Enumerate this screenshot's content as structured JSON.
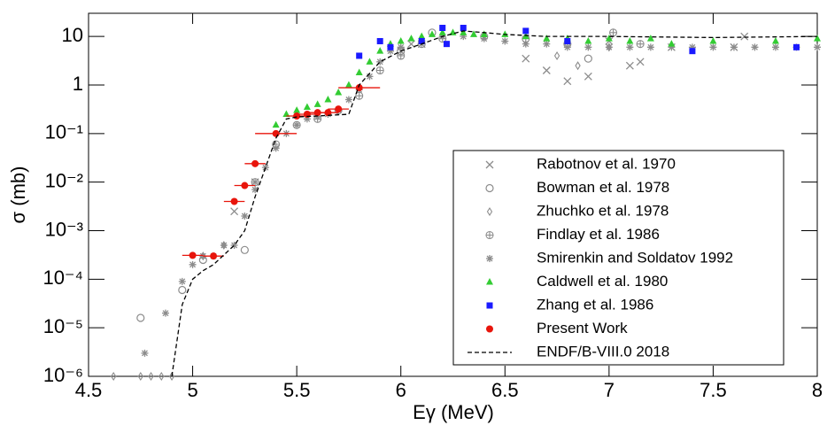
{
  "chart_data": {
    "type": "scatter",
    "x_label": "Eγ (MeV)",
    "y_label": "σ (mb)",
    "xlim": [
      4.5,
      8
    ],
    "xticks": [
      4.5,
      5,
      5.5,
      6,
      6.5,
      7,
      7.5,
      8
    ],
    "ylim": [
      1e-06,
      30
    ],
    "log_y": true,
    "yticks": [
      {
        "value": 1e-06,
        "label": "10⁻⁶"
      },
      {
        "value": 1e-05,
        "label": "10⁻⁵"
      },
      {
        "value": 0.0001,
        "label": "10⁻⁴"
      },
      {
        "value": 0.001,
        "label": "10⁻³"
      },
      {
        "value": 0.01,
        "label": "10⁻²"
      },
      {
        "value": 0.1,
        "label": "10⁻¹"
      },
      1,
      10
    ],
    "legend": "lower right",
    "series": [
      {
        "name": "Rabotnov et al. 1970",
        "marker": "x",
        "color": "#8c8c8c",
        "x": [
          5.2,
          5.3,
          6.0,
          6.05,
          6.1,
          6.6,
          6.7,
          6.8,
          6.9,
          7.0,
          7.1,
          7.15,
          7.3,
          7.6,
          7.65
        ],
        "values": [
          0.0025,
          0.01,
          5,
          7,
          7,
          3.5,
          2,
          1.2,
          1.5,
          8,
          2.5,
          3,
          6,
          6,
          10
        ]
      },
      {
        "name": "Bowman et al. 1978",
        "marker": "o",
        "color": "#8c8c8c",
        "x": [
          4.75,
          4.95,
          5.05,
          5.25,
          6.0,
          6.15,
          6.9
        ],
        "values": [
          1.6e-05,
          6e-05,
          0.00025,
          0.0004,
          5,
          12,
          3.5
        ]
      },
      {
        "name": "Zhuchko et al. 1978",
        "marker": "diamond",
        "color": "#8c8c8c",
        "x": [
          4.62,
          4.75,
          4.8,
          4.85,
          4.9,
          5.05,
          5.15,
          6.75,
          6.85,
          7.0
        ],
        "values": [
          1e-06,
          1e-06,
          1e-06,
          1e-06,
          1e-06,
          0.0003,
          0.0005,
          4,
          2.5,
          6
        ]
      },
      {
        "name": "Findlay et al. 1986",
        "marker": "plus-circle",
        "color": "#8c8c8c",
        "x": [
          5.3,
          5.4,
          5.5,
          5.6,
          5.7,
          5.8,
          5.9,
          6.0,
          6.1,
          6.2,
          6.4,
          6.6,
          6.8,
          7.02,
          7.15
        ],
        "values": [
          0.01,
          0.06,
          0.15,
          0.2,
          0.3,
          0.6,
          2,
          4,
          7,
          9,
          10,
          9,
          7,
          12,
          7
        ]
      },
      {
        "name": "Smirenkin and Soldatov 1992",
        "marker": "star",
        "color": "#8c8c8c",
        "x": [
          4.77,
          4.87,
          4.95,
          5.0,
          5.05,
          5.1,
          5.15,
          5.2,
          5.25,
          5.3,
          5.35,
          5.4,
          5.45,
          5.5,
          5.55,
          5.6,
          5.65,
          5.7,
          5.75,
          5.8,
          5.85,
          5.9,
          5.95,
          6.0,
          6.1,
          6.2,
          6.3,
          6.4,
          6.5,
          6.6,
          6.7,
          6.8,
          6.9,
          7.0,
          7.1,
          7.2,
          7.3,
          7.4,
          7.5,
          7.6,
          7.7,
          7.8,
          7.9,
          8.0
        ],
        "values": [
          3e-06,
          2e-05,
          9e-05,
          0.0002,
          0.0003,
          0.0003,
          0.0005,
          0.0005,
          0.002,
          0.007,
          0.02,
          0.05,
          0.1,
          0.15,
          0.2,
          0.22,
          0.25,
          0.3,
          0.5,
          0.8,
          1.5,
          3,
          5,
          6,
          8,
          10,
          10,
          9,
          8,
          7,
          7,
          6,
          6,
          6,
          6,
          6,
          6,
          6,
          6,
          6,
          6,
          6,
          6,
          6
        ]
      },
      {
        "name": "Caldwell et al. 1980",
        "marker": "triangle",
        "color": "#33cc33",
        "x": [
          5.4,
          5.45,
          5.5,
          5.55,
          5.6,
          5.65,
          5.7,
          5.75,
          5.8,
          5.85,
          5.9,
          5.95,
          6.0,
          6.05,
          6.1,
          6.15,
          6.2,
          6.25,
          6.3,
          6.35,
          6.4,
          6.5,
          6.6,
          6.7,
          6.8,
          6.9,
          7.0,
          7.1,
          7.2,
          7.3,
          7.5,
          7.8,
          8.0
        ],
        "values": [
          0.15,
          0.25,
          0.3,
          0.35,
          0.4,
          0.5,
          0.7,
          1,
          1.8,
          3,
          5,
          7,
          8,
          9,
          10,
          11,
          12,
          12,
          12,
          11,
          11,
          11,
          10,
          9,
          9,
          8,
          9,
          8,
          9,
          7,
          8,
          8,
          9
        ]
      },
      {
        "name": "Zhang et al. 1986",
        "marker": "square",
        "color": "#1a1aff",
        "x": [
          5.8,
          5.9,
          5.95,
          6.1,
          6.2,
          6.22,
          6.3,
          6.6,
          6.8,
          7.4,
          7.9
        ],
        "values": [
          4,
          8,
          6,
          8,
          15,
          7,
          15,
          13,
          8,
          5,
          6
        ]
      },
      {
        "name": "Present Work",
        "marker": "circle",
        "color": "#e8150c",
        "x": [
          5.0,
          5.1,
          5.2,
          5.25,
          5.3,
          5.4,
          5.5,
          5.55,
          5.6,
          5.65,
          5.7,
          5.8
        ],
        "values": [
          0.00031,
          0.0003,
          0.004,
          0.0085,
          0.024,
          0.1,
          0.23,
          0.25,
          0.27,
          0.27,
          0.32,
          0.88
        ],
        "xerr": [
          0.05,
          0.05,
          0.05,
          0.05,
          0.05,
          0.1,
          0.05,
          0.05,
          0.05,
          0.05,
          0.05,
          0.1
        ]
      },
      {
        "name": "ENDF/B-VIII.0 2018",
        "marker": "line",
        "color": "#000000",
        "x": [
          4.9,
          4.95,
          5.0,
          5.05,
          5.1,
          5.2,
          5.25,
          5.3,
          5.35,
          5.4,
          5.45,
          5.5,
          5.6,
          5.75,
          5.8,
          5.9,
          6.0,
          6.1,
          6.2,
          6.3,
          6.4,
          6.5,
          6.7,
          7.0,
          7.5,
          8.0
        ],
        "values": [
          1e-06,
          3e-05,
          0.0001,
          0.00015,
          0.0002,
          0.0005,
          0.001,
          0.005,
          0.02,
          0.08,
          0.2,
          0.22,
          0.23,
          0.25,
          1,
          3,
          5,
          7,
          10,
          13,
          12,
          11,
          10,
          10,
          9.5,
          10
        ]
      }
    ]
  }
}
